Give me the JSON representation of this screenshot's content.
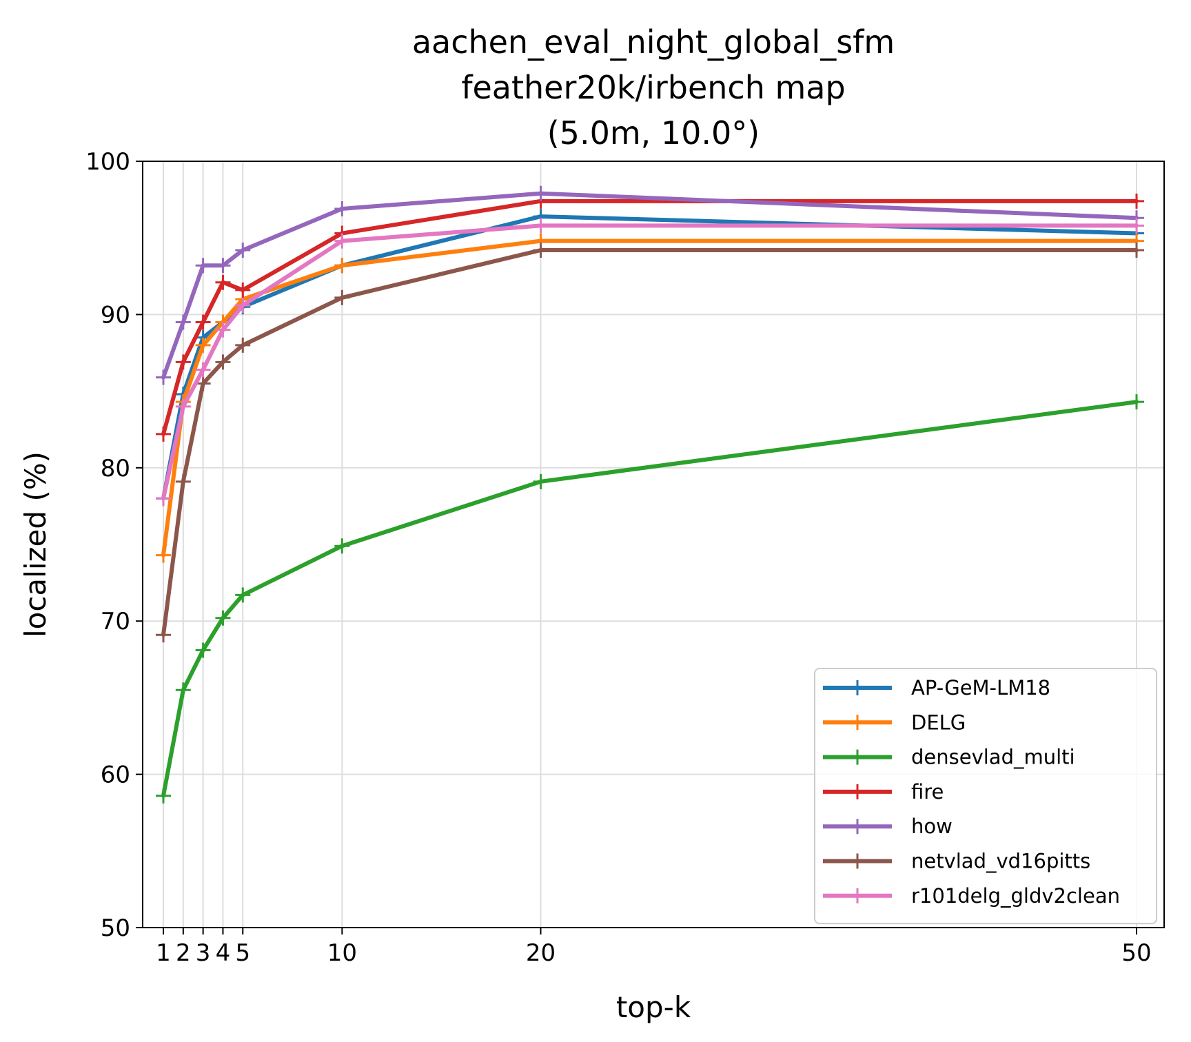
{
  "chart_data": {
    "type": "line",
    "title_lines": [
      "aachen_eval_night_global_sfm",
      "feather20k/irbench map",
      "(5.0m, 10.0°)"
    ],
    "xlabel": "top-k",
    "ylabel": "localized (%)",
    "xlim": [
      0,
      50
    ],
    "ylim": [
      50,
      100
    ],
    "x": [
      1,
      2,
      3,
      4,
      5,
      10,
      20,
      50
    ],
    "xticks": [
      1,
      2,
      3,
      4,
      5,
      10,
      20,
      50
    ],
    "yticks": [
      50,
      60,
      70,
      80,
      90,
      100
    ],
    "grid": true,
    "legend_position": "lower right",
    "marker": "plus",
    "series": [
      {
        "name": "AP-GeM-LM18",
        "color": "#1f77b4",
        "values": [
          78.0,
          84.8,
          88.5,
          89.5,
          90.5,
          93.2,
          96.4,
          95.3
        ]
      },
      {
        "name": "DELG",
        "color": "#ff7f0e",
        "values": [
          74.3,
          84.3,
          88.0,
          89.5,
          91.0,
          93.2,
          94.8,
          94.8
        ]
      },
      {
        "name": "densevlad_multi",
        "color": "#2ca02c",
        "values": [
          58.6,
          65.5,
          68.1,
          70.2,
          71.7,
          74.9,
          79.1,
          84.3
        ]
      },
      {
        "name": "fire",
        "color": "#d62728",
        "values": [
          82.2,
          86.9,
          89.5,
          92.1,
          91.6,
          95.3,
          97.4,
          97.4
        ]
      },
      {
        "name": "how",
        "color": "#9467bd",
        "values": [
          85.9,
          89.5,
          93.2,
          93.2,
          94.2,
          96.9,
          97.9,
          96.3
        ]
      },
      {
        "name": "netvlad_vd16pitts",
        "color": "#8c564b",
        "values": [
          69.1,
          79.1,
          85.5,
          86.9,
          88.0,
          91.1,
          94.2,
          94.2
        ]
      },
      {
        "name": "r101delg_gldv2clean",
        "color": "#e377c2",
        "values": [
          78.0,
          84.0,
          86.4,
          89.0,
          90.6,
          94.8,
          95.8,
          95.8
        ]
      }
    ]
  }
}
